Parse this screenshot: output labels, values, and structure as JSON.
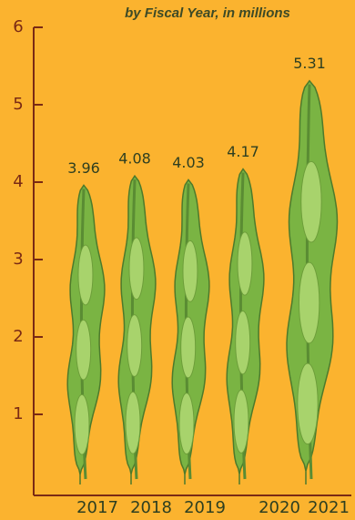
{
  "chart_data": {
    "type": "bar",
    "title": "by Fiscal Year, in millions",
    "categories": [
      "2017",
      "2018",
      "2019",
      "2020",
      "2021"
    ],
    "values": [
      3.96,
      4.08,
      4.03,
      4.17,
      5.31
    ],
    "color": "#7ab443",
    "ylim": [
      0,
      6
    ],
    "yticks": [
      1,
      2,
      3,
      4,
      5,
      6
    ],
    "grid": false
  }
}
